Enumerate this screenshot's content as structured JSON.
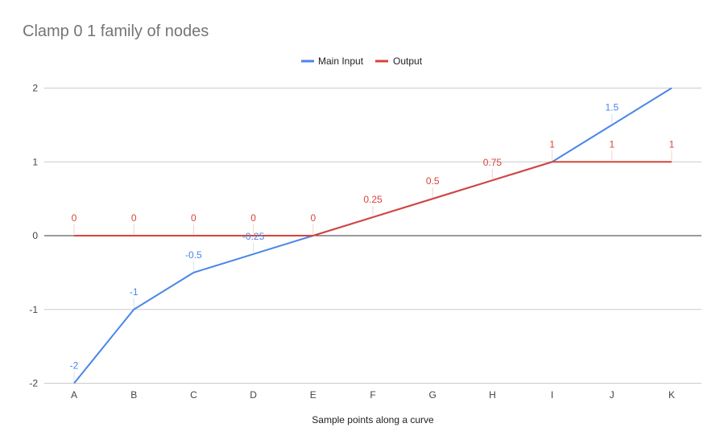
{
  "chart_data": {
    "type": "line",
    "title": "Clamp 0 1 family of nodes",
    "xlabel": "Sample points along a curve",
    "ylabel": "",
    "categories": [
      "A",
      "B",
      "C",
      "D",
      "E",
      "F",
      "G",
      "H",
      "I",
      "J",
      "K"
    ],
    "ylim": [
      -2,
      2
    ],
    "yticks": [
      2,
      1,
      0,
      -1,
      -2
    ],
    "grid": true,
    "legend_position": "top",
    "series": [
      {
        "name": "Main Input",
        "color": "#4a86e8",
        "values": [
          -2,
          -1,
          -0.5,
          -0.25,
          0,
          0.25,
          0.5,
          0.75,
          1,
          1.5,
          2
        ],
        "labels": [
          "-2",
          "-1",
          "-0.5",
          "-0.25",
          "",
          "",
          "",
          "",
          "",
          "1.5",
          ""
        ]
      },
      {
        "name": "Output",
        "color": "#d9433a",
        "values": [
          0,
          0,
          0,
          0,
          0,
          0.25,
          0.5,
          0.75,
          1,
          1,
          1
        ],
        "labels": [
          "0",
          "0",
          "0",
          "0",
          "0",
          "0.25",
          "0.5",
          "0.75",
          "1",
          "1",
          "1"
        ]
      }
    ]
  }
}
